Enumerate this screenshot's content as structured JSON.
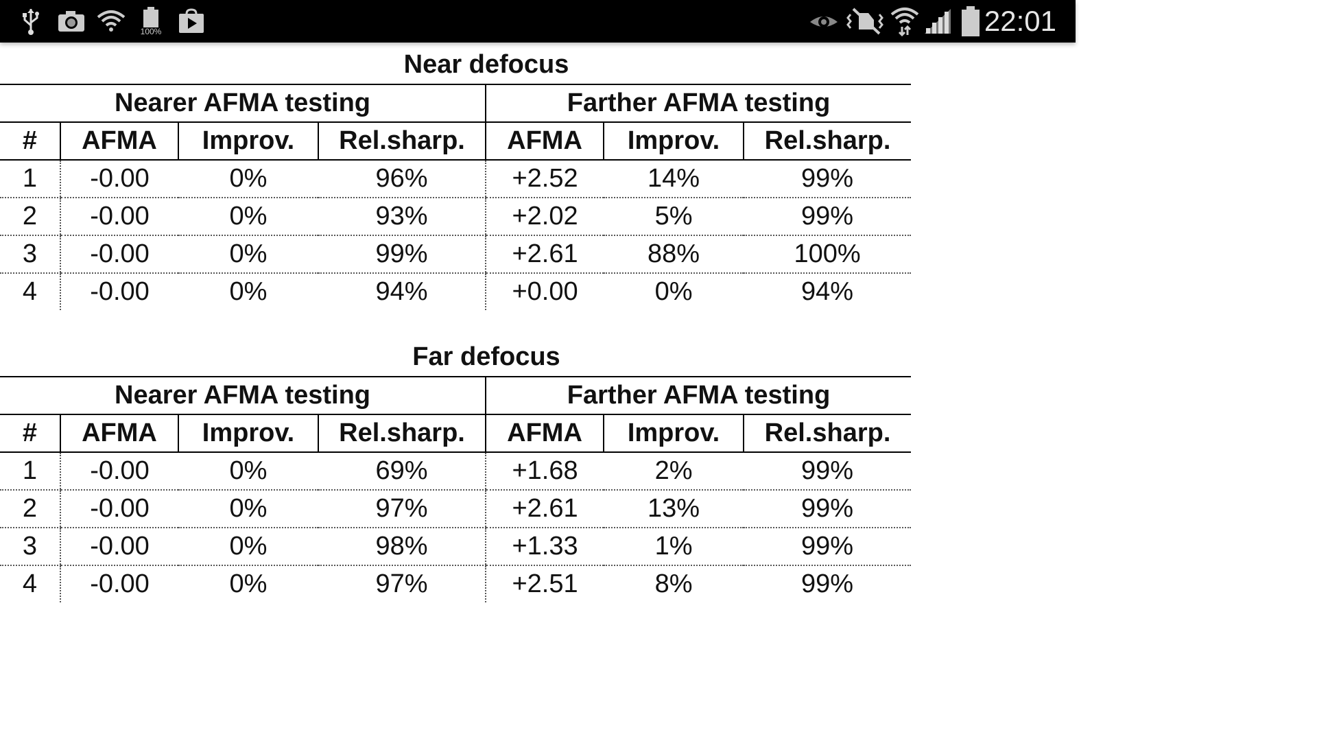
{
  "status_bar": {
    "left_icons": [
      "usb-icon",
      "camera-icon",
      "wifi-question-icon",
      "battery-100-icon",
      "play-store-icon"
    ],
    "battery_small_label": "100%",
    "right_icons": [
      "eye-icon",
      "vibrate-mute-icon",
      "wifi-icon",
      "signal-icon",
      "battery-icon"
    ],
    "time": "22:01"
  },
  "tables": [
    {
      "title": "Near defocus",
      "groups": [
        "Nearer AFMA testing",
        "Farther AFMA testing"
      ],
      "columns": [
        "#",
        "AFMA",
        "Improv.",
        "Rel.sharp.",
        "AFMA",
        "Improv.",
        "Rel.sharp."
      ],
      "rows": [
        [
          "1",
          "-0.00",
          "0%",
          "96%",
          "+2.52",
          "14%",
          "99%"
        ],
        [
          "2",
          "-0.00",
          "0%",
          "93%",
          "+2.02",
          "5%",
          "99%"
        ],
        [
          "3",
          "-0.00",
          "0%",
          "99%",
          "+2.61",
          "88%",
          "100%"
        ],
        [
          "4",
          "-0.00",
          "0%",
          "94%",
          "+0.00",
          "0%",
          "94%"
        ]
      ]
    },
    {
      "title": "Far defocus",
      "groups": [
        "Nearer AFMA testing",
        "Farther AFMA testing"
      ],
      "columns": [
        "#",
        "AFMA",
        "Improv.",
        "Rel.sharp.",
        "AFMA",
        "Improv.",
        "Rel.sharp."
      ],
      "rows": [
        [
          "1",
          "-0.00",
          "0%",
          "69%",
          "+1.68",
          "2%",
          "99%"
        ],
        [
          "2",
          "-0.00",
          "0%",
          "97%",
          "+2.61",
          "13%",
          "99%"
        ],
        [
          "3",
          "-0.00",
          "0%",
          "98%",
          "+1.33",
          "1%",
          "99%"
        ],
        [
          "4",
          "-0.00",
          "0%",
          "97%",
          "+2.51",
          "8%",
          "99%"
        ]
      ]
    }
  ]
}
